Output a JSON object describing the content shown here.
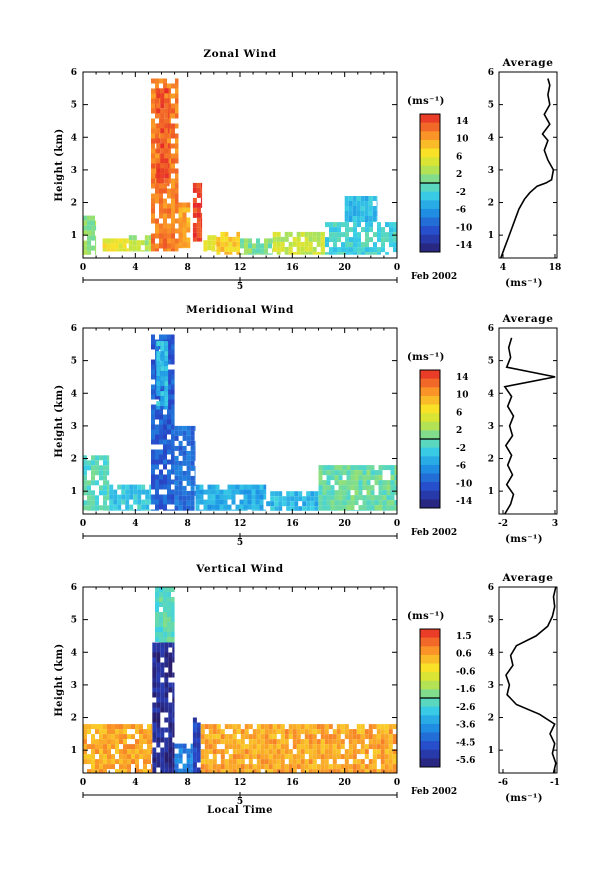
{
  "figure": {
    "date_label": "Feb 2002",
    "day_label": "5",
    "x_title": "Local Time",
    "y_title": "Height (km)",
    "unit_label": "(ms⁻¹)",
    "avg_unit_label": "(ms⁻¹)",
    "avg_title": "Average"
  },
  "chart_data": [
    {
      "type": "heatmap",
      "title": "Zonal Wind",
      "xlabel": "",
      "ylabel": "Height (km)",
      "xlim": [
        0,
        24
      ],
      "ylim": [
        0.3,
        6
      ],
      "xticks": [
        "0",
        "4",
        "8",
        "12",
        "16",
        "20",
        "0"
      ],
      "yticks": [
        "1",
        "2",
        "3",
        "4",
        "5",
        "6"
      ],
      "colorbar": {
        "ticks": [
          "14",
          "10",
          "6",
          "2",
          "-2",
          "-6",
          "-10",
          "-14"
        ],
        "range": [
          -16,
          16
        ]
      },
      "cells": [
        {
          "x": [
            5.2,
            7.3
          ],
          "y": [
            0.5,
            5.8
          ],
          "v": 12
        },
        {
          "x": [
            5.6,
            6.6
          ],
          "y": [
            2.5,
            5.5
          ],
          "v": 14
        },
        {
          "x": [
            8.4,
            9.1
          ],
          "y": [
            0.8,
            2.6
          ],
          "v": 15
        },
        {
          "x": [
            7.3,
            8.2
          ],
          "y": [
            0.6,
            2.0
          ],
          "v": 10
        },
        {
          "x": [
            9.2,
            10.2
          ],
          "y": [
            0.5,
            1.0
          ],
          "v": 6
        },
        {
          "x": [
            10.2,
            12.0
          ],
          "y": [
            0.4,
            1.1
          ],
          "v": 8
        },
        {
          "x": [
            12.0,
            14.5
          ],
          "y": [
            0.4,
            0.9
          ],
          "v": 1
        },
        {
          "x": [
            14.5,
            18.5
          ],
          "y": [
            0.4,
            1.1
          ],
          "v": 4
        },
        {
          "x": [
            18.5,
            24.0
          ],
          "y": [
            0.4,
            1.4
          ],
          "v": -2
        },
        {
          "x": [
            20.0,
            22.5
          ],
          "y": [
            1.4,
            2.2
          ],
          "v": -4
        },
        {
          "x": [
            0.0,
            1.0
          ],
          "y": [
            0.4,
            1.6
          ],
          "v": 2
        },
        {
          "x": [
            1.5,
            3.5
          ],
          "y": [
            0.5,
            0.9
          ],
          "v": 6
        },
        {
          "x": [
            3.5,
            5.2
          ],
          "y": [
            0.5,
            1.0
          ],
          "v": 3
        }
      ],
      "average": {
        "xlim": [
          2,
          18
        ],
        "xticks": [
          "4",
          "18"
        ],
        "points": [
          [
            2.5,
            0.3
          ],
          [
            3.5,
            0.6
          ],
          [
            4.5,
            0.9
          ],
          [
            5.5,
            1.2
          ],
          [
            6.5,
            1.5
          ],
          [
            7.5,
            1.8
          ],
          [
            9,
            2.1
          ],
          [
            10.5,
            2.3
          ],
          [
            12.5,
            2.5
          ],
          [
            15,
            2.6
          ],
          [
            16.5,
            2.7
          ],
          [
            17,
            3.0
          ],
          [
            15.5,
            3.3
          ],
          [
            14.5,
            3.6
          ],
          [
            15.5,
            3.9
          ],
          [
            14,
            4.1
          ],
          [
            16,
            4.4
          ],
          [
            14.5,
            4.7
          ],
          [
            16,
            5.0
          ],
          [
            15.5,
            5.3
          ],
          [
            16,
            5.6
          ],
          [
            15.5,
            5.8
          ]
        ]
      }
    },
    {
      "type": "heatmap",
      "title": "Meridional Wind",
      "xlabel": "",
      "ylabel": "Height (km)",
      "xlim": [
        0,
        24
      ],
      "ylim": [
        0.3,
        6
      ],
      "xticks": [
        "0",
        "4",
        "8",
        "12",
        "16",
        "20",
        "0"
      ],
      "yticks": [
        "1",
        "2",
        "3",
        "4",
        "5",
        "6"
      ],
      "colorbar": {
        "ticks": [
          "14",
          "10",
          "6",
          "2",
          "-2",
          "-6",
          "-10",
          "-14"
        ],
        "range": [
          -16,
          16
        ]
      },
      "cells": [
        {
          "x": [
            5.2,
            7.0
          ],
          "y": [
            0.4,
            5.8
          ],
          "v": -10
        },
        {
          "x": [
            5.6,
            6.5
          ],
          "y": [
            3.5,
            5.6
          ],
          "v": -4
        },
        {
          "x": [
            7.0,
            8.6
          ],
          "y": [
            0.4,
            3.0
          ],
          "v": -9
        },
        {
          "x": [
            8.6,
            14.0
          ],
          "y": [
            0.4,
            1.2
          ],
          "v": -5
        },
        {
          "x": [
            14.0,
            18.0
          ],
          "y": [
            0.4,
            1.0
          ],
          "v": -4
        },
        {
          "x": [
            18.0,
            24.0
          ],
          "y": [
            0.4,
            1.8
          ],
          "v": 0
        },
        {
          "x": [
            0.0,
            2.0
          ],
          "y": [
            0.4,
            2.1
          ],
          "v": -1
        },
        {
          "x": [
            2.0,
            5.2
          ],
          "y": [
            0.4,
            1.2
          ],
          "v": -3
        }
      ],
      "average": {
        "xlim": [
          -3,
          3
        ],
        "xticks": [
          "-2",
          "3"
        ],
        "points": [
          [
            -2.4,
            0.3
          ],
          [
            -1.8,
            0.6
          ],
          [
            -1.5,
            0.9
          ],
          [
            -2.2,
            1.2
          ],
          [
            -1.6,
            1.5
          ],
          [
            -2.1,
            1.8
          ],
          [
            -1.7,
            2.1
          ],
          [
            -2.3,
            2.4
          ],
          [
            -1.6,
            2.7
          ],
          [
            -1.9,
            3.0
          ],
          [
            -1.5,
            3.3
          ],
          [
            -2.1,
            3.6
          ],
          [
            -1.7,
            3.9
          ],
          [
            -2.4,
            4.2
          ],
          [
            2.8,
            4.5
          ],
          [
            -2.2,
            4.8
          ],
          [
            -1.8,
            5.1
          ],
          [
            -2.0,
            5.4
          ],
          [
            -1.7,
            5.7
          ]
        ]
      }
    },
    {
      "type": "heatmap",
      "title": "Vertical Wind",
      "xlabel": "Local Time",
      "ylabel": "Height (km)",
      "xlim": [
        0,
        24
      ],
      "ylim": [
        0.3,
        6
      ],
      "xticks": [
        "0",
        "4",
        "8",
        "12",
        "16",
        "20",
        "0"
      ],
      "yticks": [
        "1",
        "2",
        "3",
        "4",
        "5",
        "6"
      ],
      "colorbar": {
        "ticks": [
          "1.5",
          "0.6",
          "-0.6",
          "-1.6",
          "-2.6",
          "-3.6",
          "-4.5",
          "-5.6"
        ],
        "range": [
          -6.0,
          2.0
        ]
      },
      "cells": [
        {
          "x": [
            5.3,
            7.0
          ],
          "y": [
            0.3,
            4.3
          ],
          "v": -5.6
        },
        {
          "x": [
            5.5,
            7.0
          ],
          "y": [
            4.3,
            6.0
          ],
          "v": -2.2
        },
        {
          "x": [
            7.0,
            8.4
          ],
          "y": [
            0.3,
            1.2
          ],
          "v": -4.0
        },
        {
          "x": [
            8.4,
            9.0
          ],
          "y": [
            0.3,
            2.0
          ],
          "v": -5.0
        },
        {
          "x": [
            0.0,
            5.3
          ],
          "y": [
            0.3,
            1.8
          ],
          "v": 0.5
        },
        {
          "x": [
            9.0,
            24.0
          ],
          "y": [
            0.3,
            1.8
          ],
          "v": 0.5
        }
      ],
      "average": {
        "xlim": [
          -6,
          -1
        ],
        "xticks": [
          "-6",
          "-1"
        ],
        "points": [
          [
            -1.3,
            0.3
          ],
          [
            -1.1,
            0.6
          ],
          [
            -1.4,
            0.9
          ],
          [
            -1.2,
            1.2
          ],
          [
            -1.6,
            1.5
          ],
          [
            -1.2,
            1.8
          ],
          [
            -2.5,
            2.1
          ],
          [
            -4.5,
            2.4
          ],
          [
            -5.3,
            2.7
          ],
          [
            -5.1,
            3.0
          ],
          [
            -5.4,
            3.3
          ],
          [
            -4.8,
            3.6
          ],
          [
            -5.0,
            3.9
          ],
          [
            -4.5,
            4.2
          ],
          [
            -2.8,
            4.5
          ],
          [
            -1.8,
            4.8
          ],
          [
            -1.4,
            5.1
          ],
          [
            -1.2,
            5.4
          ],
          [
            -1.3,
            5.7
          ],
          [
            -1.1,
            6.0
          ]
        ]
      }
    }
  ]
}
